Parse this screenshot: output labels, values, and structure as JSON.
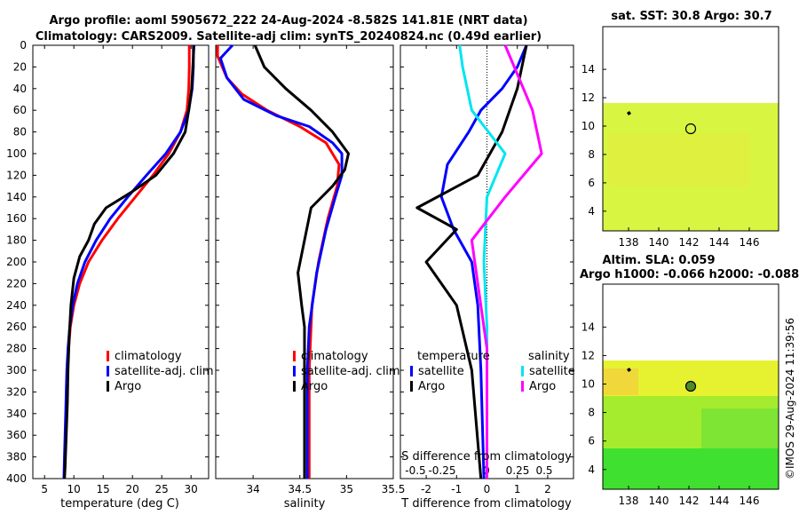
{
  "header": {
    "line1": "Argo profile: aoml 5905672_222 24-Aug-2024 -8.582S 141.81E (NRT data)",
    "line2": "Climatology: CARS2009. Satellite-adj clim: synTS_20240824.nc (0.49d earlier)"
  },
  "colors": {
    "climatology": "#ff0000",
    "satellite": "#0000ff",
    "argo": "#000000",
    "sat_salinity": "#00e5f0",
    "argo_salinity": "#ff00ff"
  },
  "chart_data": [
    {
      "id": "temperature",
      "type": "line",
      "xlabel": "temperature (deg C)",
      "ylabel": "",
      "xlim": [
        3,
        33
      ],
      "ylim": [
        400,
        0
      ],
      "xticks": [
        5,
        10,
        15,
        20,
        25,
        30
      ],
      "yticks": [
        0,
        20,
        40,
        60,
        80,
        100,
        120,
        140,
        160,
        180,
        200,
        220,
        240,
        260,
        280,
        300,
        320,
        340,
        360,
        380,
        400
      ],
      "legend": [
        "climatology",
        "satellite-adj. clim",
        "Argo"
      ],
      "series": [
        {
          "name": "climatology",
          "color": "#ff0000",
          "points": [
            [
              29.7,
              0
            ],
            [
              29.7,
              20
            ],
            [
              29.6,
              40
            ],
            [
              29.3,
              60
            ],
            [
              28.2,
              80
            ],
            [
              26.2,
              100
            ],
            [
              23.5,
              120
            ],
            [
              20.5,
              140
            ],
            [
              17.5,
              160
            ],
            [
              14.8,
              180
            ],
            [
              12.5,
              200
            ],
            [
              11,
              220
            ],
            [
              10,
              240
            ],
            [
              9.4,
              260
            ],
            [
              9.1,
              280
            ],
            [
              8.9,
              300
            ],
            [
              8.8,
              320
            ],
            [
              8.7,
              340
            ],
            [
              8.6,
              360
            ],
            [
              8.5,
              380
            ],
            [
              8.4,
              400
            ]
          ]
        },
        {
          "name": "satellite-adj. clim",
          "color": "#0000ff",
          "points": [
            [
              30.4,
              0
            ],
            [
              30.4,
              20
            ],
            [
              30.2,
              40
            ],
            [
              29.6,
              60
            ],
            [
              28.2,
              80
            ],
            [
              25.7,
              100
            ],
            [
              22.4,
              120
            ],
            [
              19.2,
              140
            ],
            [
              16.2,
              160
            ],
            [
              13.8,
              180
            ],
            [
              11.9,
              200
            ],
            [
              10.6,
              220
            ],
            [
              9.8,
              240
            ],
            [
              9.3,
              260
            ],
            [
              9.0,
              280
            ],
            [
              8.8,
              300
            ],
            [
              8.7,
              320
            ],
            [
              8.6,
              340
            ],
            [
              8.5,
              360
            ],
            [
              8.4,
              380
            ],
            [
              8.3,
              400
            ]
          ]
        },
        {
          "name": "Argo",
          "color": "#000000",
          "points": [
            [
              30.5,
              0
            ],
            [
              30.3,
              20
            ],
            [
              30.1,
              40
            ],
            [
              29.6,
              60
            ],
            [
              29,
              80
            ],
            [
              27,
              100
            ],
            [
              24,
              120
            ],
            [
              20,
              135
            ],
            [
              15.5,
              150
            ],
            [
              13.5,
              165
            ],
            [
              12.5,
              180
            ],
            [
              11,
              195
            ],
            [
              10,
              215
            ],
            [
              9.5,
              240
            ],
            [
              9.2,
              270
            ],
            [
              9,
              300
            ],
            [
              8.9,
              330
            ],
            [
              8.7,
              360
            ],
            [
              8.5,
              390
            ],
            [
              8.4,
              400
            ]
          ]
        }
      ]
    },
    {
      "id": "salinity",
      "type": "line",
      "xlabel": "salinity",
      "xlim": [
        33.6,
        35.5
      ],
      "ylim": [
        400,
        0
      ],
      "xticks": [
        "34",
        "34.5",
        "35",
        "35.5"
      ],
      "tick_values": [
        34,
        34.5,
        35,
        35.5
      ],
      "legend": [
        "climatology",
        "satellite-adj. clim",
        "Argo"
      ],
      "series": [
        {
          "name": "climatology",
          "color": "#ff0000",
          "points": [
            [
              33.62,
              0
            ],
            [
              33.62,
              10
            ],
            [
              33.72,
              30
            ],
            [
              33.88,
              45
            ],
            [
              34.15,
              60
            ],
            [
              34.5,
              75
            ],
            [
              34.78,
              90
            ],
            [
              34.92,
              110
            ],
            [
              34.9,
              130
            ],
            [
              34.8,
              160
            ],
            [
              34.7,
              200
            ],
            [
              34.63,
              240
            ],
            [
              34.6,
              300
            ],
            [
              34.6,
              400
            ]
          ]
        },
        {
          "name": "satellite-adj. clim",
          "color": "#0000ff",
          "points": [
            [
              33.78,
              0
            ],
            [
              33.65,
              12
            ],
            [
              33.72,
              30
            ],
            [
              33.9,
              50
            ],
            [
              34.25,
              65
            ],
            [
              34.6,
              75
            ],
            [
              34.85,
              90
            ],
            [
              34.95,
              100
            ],
            [
              34.95,
              120
            ],
            [
              34.88,
              140
            ],
            [
              34.78,
              170
            ],
            [
              34.68,
              210
            ],
            [
              34.6,
              260
            ],
            [
              34.58,
              300
            ],
            [
              34.58,
              400
            ]
          ]
        },
        {
          "name": "Argo",
          "color": "#000000",
          "points": [
            [
              34.02,
              0
            ],
            [
              34.12,
              20
            ],
            [
              34.35,
              40
            ],
            [
              34.62,
              60
            ],
            [
              34.85,
              80
            ],
            [
              35.02,
              100
            ],
            [
              34.98,
              115
            ],
            [
              34.85,
              130
            ],
            [
              34.62,
              150
            ],
            [
              34.55,
              180
            ],
            [
              34.48,
              210
            ],
            [
              34.52,
              240
            ],
            [
              34.55,
              260
            ],
            [
              34.55,
              300
            ],
            [
              34.55,
              400
            ]
          ]
        }
      ]
    },
    {
      "id": "difference",
      "type": "line",
      "xlabel": "T difference from climatology",
      "x2label": "S difference from climatology",
      "xlim": [
        -2.85,
        2.85
      ],
      "ylim": [
        400,
        0
      ],
      "xticks": [
        "-2",
        "-1",
        "0",
        "1",
        "2"
      ],
      "tick_values": [
        -2,
        -1,
        0,
        1,
        2
      ],
      "s_ticks": [
        "-0.5",
        "-0.25",
        "0",
        "0.25",
        "0.5"
      ],
      "legend_left": {
        "title": "temperature",
        "items": [
          "satellite",
          "Argo"
        ]
      },
      "legend_right": {
        "title": "salinity",
        "items": [
          "satellite",
          "Argo"
        ]
      },
      "series": [
        {
          "name": "T satellite",
          "color": "#0000ff",
          "points": [
            [
              1.3,
              0
            ],
            [
              1.0,
              20
            ],
            [
              0.5,
              40
            ],
            [
              -0.2,
              60
            ],
            [
              -0.6,
              80
            ],
            [
              -1.3,
              110
            ],
            [
              -1.5,
              140
            ],
            [
              -1.1,
              170
            ],
            [
              -0.5,
              200
            ],
            [
              -0.3,
              240
            ],
            [
              -0.2,
              300
            ],
            [
              -0.1,
              400
            ]
          ]
        },
        {
          "name": "T Argo",
          "color": "#000000",
          "points": [
            [
              1.3,
              0
            ],
            [
              1.0,
              40
            ],
            [
              0.5,
              80
            ],
            [
              -0.3,
              120
            ],
            [
              -2.3,
              150
            ],
            [
              -1.0,
              170
            ],
            [
              -2.0,
              200
            ],
            [
              -1.0,
              240
            ],
            [
              -0.5,
              300
            ],
            [
              -0.2,
              400
            ]
          ]
        },
        {
          "name": "S satellite",
          "color": "#00e5f0",
          "points": [
            [
              -0.9,
              0
            ],
            [
              -0.8,
              20
            ],
            [
              -0.5,
              60
            ],
            [
              0.6,
              100
            ],
            [
              0.0,
              140
            ],
            [
              -0.1,
              200
            ],
            [
              0.0,
              260
            ],
            [
              0.0,
              400
            ]
          ]
        },
        {
          "name": "S Argo",
          "color": "#ff00ff",
          "points": [
            [
              0.6,
              0
            ],
            [
              1.2,
              40
            ],
            [
              1.5,
              60
            ],
            [
              1.8,
              100
            ],
            [
              0.6,
              140
            ],
            [
              -0.5,
              180
            ],
            [
              -0.3,
              220
            ],
            [
              0.0,
              280
            ],
            [
              0.0,
              400
            ]
          ]
        }
      ]
    }
  ],
  "maps": {
    "sst": {
      "title": "sat. SST: 30.8 Argo: 30.7",
      "xticks": [
        "138",
        "140",
        "142",
        "144",
        "146"
      ],
      "yticks": [
        "4",
        "6",
        "8",
        "10",
        "12",
        "14"
      ]
    },
    "sla": {
      "title1": "Altim. SLA: 0.059",
      "title2": "Argo h1000: -0.066 h2000: -0.088",
      "xticks": [
        "138",
        "140",
        "142",
        "144",
        "146"
      ],
      "yticks": [
        "4",
        "6",
        "8",
        "10",
        "12",
        "14"
      ]
    }
  },
  "timestamp": "©IMOS 29-Aug-2024 11:39:56"
}
